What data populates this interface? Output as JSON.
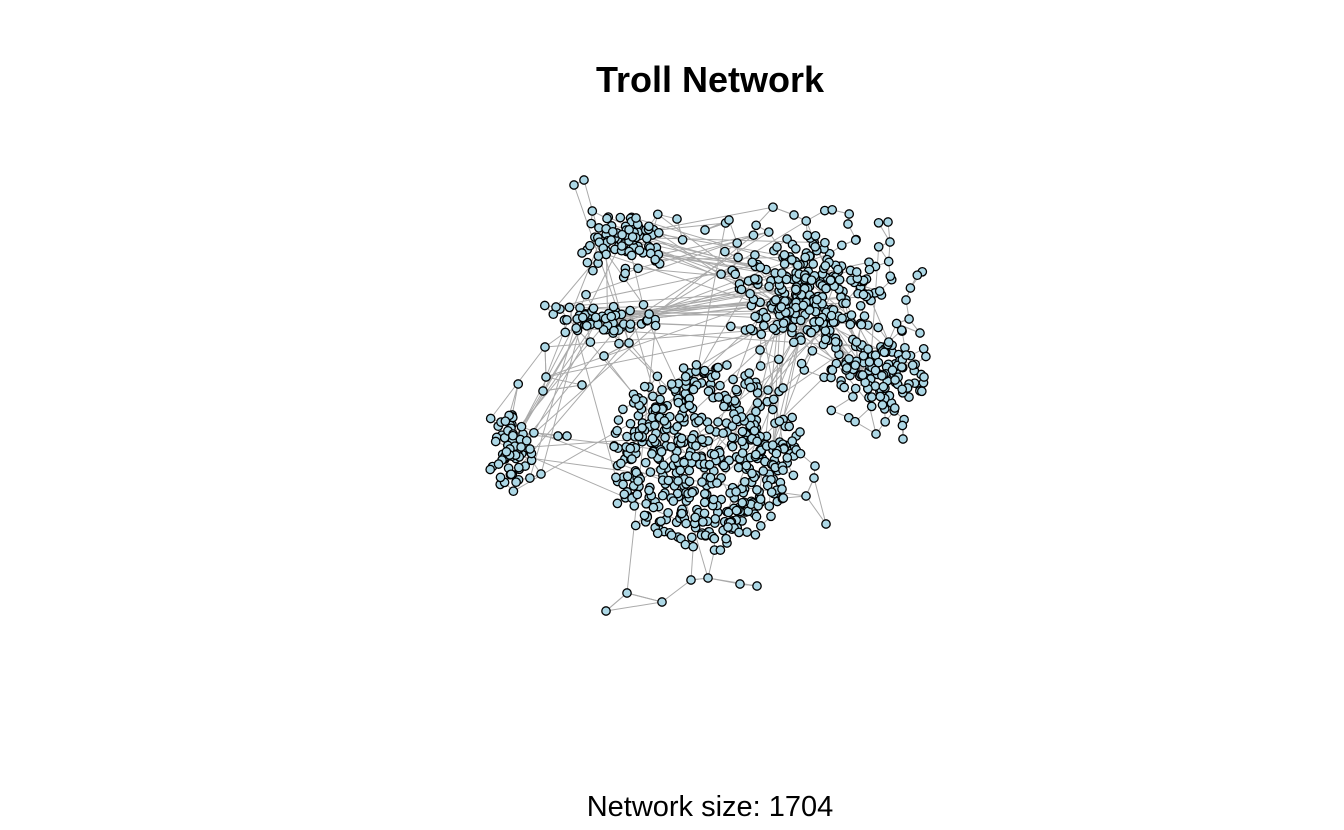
{
  "title": "Troll Network",
  "caption": "Network size: 1704",
  "style": {
    "node_fill": "#add8e6",
    "node_stroke": "#000000",
    "edge_color": "#aaaaaa",
    "background": "#ffffff"
  },
  "graph": {
    "node_count": 1704,
    "communities": 6
  }
}
